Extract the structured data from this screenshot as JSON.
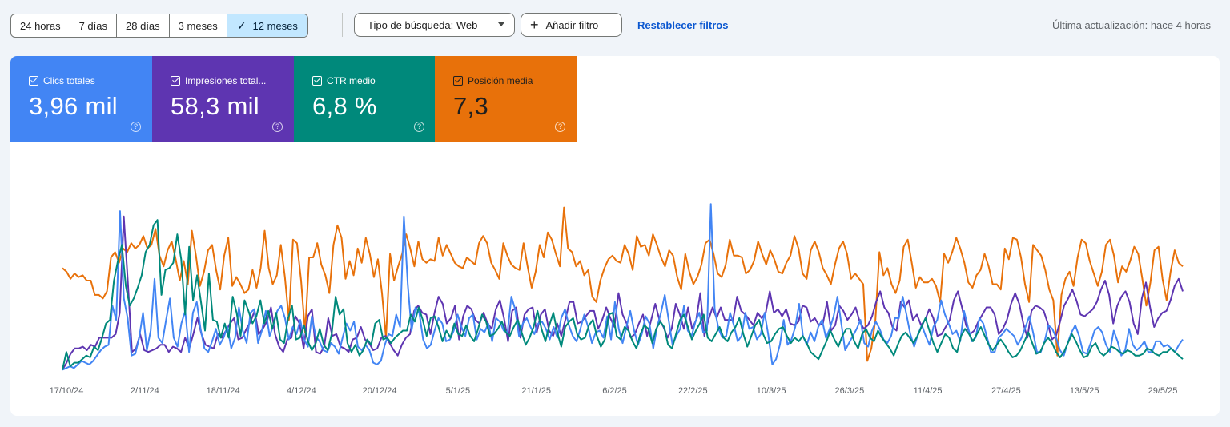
{
  "toolbar": {
    "ranges": [
      "24 horas",
      "7 días",
      "28 días",
      "3 meses",
      "12 meses"
    ],
    "active_range": "12 meses",
    "search_type": "Tipo de búsqueda: Web",
    "add_filter": "Añadir filtro",
    "reset_filters": "Restablecer filtros",
    "last_update": "Última actualización: hace 4 horas"
  },
  "metrics": {
    "clicks": {
      "label": "Clics totales",
      "value": "3,96 mil",
      "color": "#4285f4",
      "checked": true
    },
    "impressions": {
      "label": "Impresiones total...",
      "value": "58,3 mil",
      "color": "#5e35b1",
      "checked": true
    },
    "ctr": {
      "label": "CTR medio",
      "value": "6,8 %",
      "color": "#00897b",
      "checked": true
    },
    "position": {
      "label": "Posición media",
      "value": "7,3",
      "color": "#e8710a",
      "checked": true
    }
  },
  "chart_data": {
    "type": "line",
    "x_range": [
      "2024-10-17",
      "2025-05-30"
    ],
    "tick_labels": [
      "17/10/24",
      "2/11/24",
      "18/11/24",
      "4/12/24",
      "20/12/24",
      "5/1/25",
      "21/1/25",
      "6/2/25",
      "22/2/25",
      "10/3/25",
      "26/3/25",
      "11/4/25",
      "27/4/25",
      "13/5/25",
      "29/5/25"
    ],
    "axes_visible": false,
    "grid": false,
    "note": "Series values are relative levels (0 = bottom, 1 = top of plot) since no y-axis is shown",
    "series": [
      {
        "name": "Posición media",
        "color": "#e8710a",
        "values": [
          0.59,
          0.57,
          0.53,
          0.56,
          0.54,
          0.55,
          0.52,
          0.52,
          0.44,
          0.44,
          0.42,
          0.46,
          0.65,
          0.68,
          0.62,
          0.7,
          0.68,
          0.73,
          0.7,
          0.72,
          0.77,
          0.7,
          0.72,
          0.81,
          0.66,
          0.6,
          0.69,
          0.74,
          0.64,
          0.52,
          0.63,
          0.5,
          0.8,
          0.66,
          0.49,
          0.57,
          0.69,
          0.72,
          0.58,
          0.47,
          0.66,
          0.76,
          0.49,
          0.54,
          0.5,
          0.45,
          0.47,
          0.58,
          0.48,
          0.59,
          0.8,
          0.59,
          0.5,
          0.55,
          0.72,
          0.54,
          0.3,
          0.75,
          0.73,
          0.52,
          0.23,
          0.65,
          0.65,
          0.73,
          0.61,
          0.55,
          0.45,
          0.72,
          0.83,
          0.76,
          0.53,
          0.63,
          0.55,
          0.7,
          0.62,
          0.76,
          0.67,
          0.54,
          0.64,
          0.45,
          0.2,
          0.67,
          0.52,
          0.6,
          0.67,
          0.78,
          0.7,
          0.6,
          0.74,
          0.64,
          0.62,
          0.64,
          0.63,
          0.76,
          0.66,
          0.72,
          0.67,
          0.62,
          0.6,
          0.59,
          0.65,
          0.63,
          0.61,
          0.73,
          0.77,
          0.73,
          0.62,
          0.58,
          0.53,
          0.73,
          0.66,
          0.61,
          0.59,
          0.58,
          0.73,
          0.6,
          0.48,
          0.57,
          0.72,
          0.65,
          0.79,
          0.75,
          0.67,
          0.6,
          0.93,
          0.7,
          0.68,
          0.6,
          0.63,
          0.55,
          0.58,
          0.43,
          0.4,
          0.52,
          0.59,
          0.64,
          0.66,
          0.63,
          0.62,
          0.72,
          0.67,
          0.58,
          0.77,
          0.71,
          0.72,
          0.66,
          0.78,
          0.72,
          0.65,
          0.6,
          0.69,
          0.66,
          0.54,
          0.47,
          0.67,
          0.57,
          0.5,
          0.54,
          0.61,
          0.73,
          0.75,
          0.67,
          0.56,
          0.54,
          0.61,
          0.75,
          0.66,
          0.66,
          0.65,
          0.56,
          0.58,
          0.63,
          0.74,
          0.67,
          0.61,
          0.69,
          0.64,
          0.57,
          0.56,
          0.62,
          0.66,
          0.77,
          0.7,
          0.56,
          0.53,
          0.69,
          0.74,
          0.68,
          0.59,
          0.55,
          0.5,
          0.61,
          0.7,
          0.74,
          0.67,
          0.53,
          0.56,
          0.53,
          0.5,
          0.07,
          0.14,
          0.3,
          0.68,
          0.55,
          0.59,
          0.5,
          0.45,
          0.52,
          0.71,
          0.75,
          0.62,
          0.48,
          0.54,
          0.51,
          0.51,
          0.53,
          0.49,
          0.4,
          0.67,
          0.62,
          0.68,
          0.76,
          0.7,
          0.62,
          0.51,
          0.48,
          0.55,
          0.58,
          0.67,
          0.6,
          0.5,
          0.5,
          0.47,
          0.7,
          0.64,
          0.76,
          0.75,
          0.65,
          0.5,
          0.4,
          0.72,
          0.69,
          0.66,
          0.58,
          0.47,
          0.41,
          0.1,
          0.44,
          0.53,
          0.57,
          0.49,
          0.65,
          0.75,
          0.73,
          0.63,
          0.56,
          0.49,
          0.57,
          0.72,
          0.75,
          0.66,
          0.51,
          0.6,
          0.57,
          0.63,
          0.71,
          0.67,
          0.53,
          0.38,
          0.51,
          0.69,
          0.71,
          0.53,
          0.41,
          0.57,
          0.69,
          0.62,
          0.6
        ]
      },
      {
        "name": "Impresiones totales",
        "color": "#5e35b1",
        "values": [
          0.02,
          0.06,
          0.11,
          0.14,
          0.14,
          0.15,
          0.13,
          0.16,
          0.15,
          0.2,
          0.2,
          0.2,
          0.2,
          0.22,
          0.34,
          0.88,
          0.51,
          0.12,
          0.14,
          0.22,
          0.13,
          0.12,
          0.13,
          0.14,
          0.16,
          0.16,
          0.12,
          0.15,
          0.14,
          0.12,
          0.2,
          0.14,
          0.22,
          0.31,
          0.22,
          0.16,
          0.15,
          0.14,
          0.22,
          0.2,
          0.24,
          0.28,
          0.31,
          0.19,
          0.2,
          0.25,
          0.29,
          0.35,
          0.22,
          0.25,
          0.29,
          0.37,
          0.22,
          0.15,
          0.12,
          0.19,
          0.2,
          0.32,
          0.28,
          0.14,
          0.32,
          0.36,
          0.12,
          0.11,
          0.15,
          0.31,
          0.21,
          0.22,
          0.15,
          0.14,
          0.12,
          0.19,
          0.2,
          0.26,
          0.19,
          0.17,
          0.13,
          0.14,
          0.2,
          0.21,
          0.17,
          0.13,
          0.1,
          0.16,
          0.2,
          0.22,
          0.35,
          0.38,
          0.34,
          0.33,
          0.22,
          0.34,
          0.43,
          0.39,
          0.28,
          0.31,
          0.38,
          0.19,
          0.32,
          0.38,
          0.36,
          0.3,
          0.28,
          0.34,
          0.28,
          0.25,
          0.36,
          0.41,
          0.31,
          0.18,
          0.35,
          0.37,
          0.2,
          0.33,
          0.36,
          0.37,
          0.23,
          0.33,
          0.36,
          0.24,
          0.21,
          0.28,
          0.21,
          0.3,
          0.4,
          0.4,
          0.28,
          0.29,
          0.32,
          0.35,
          0.35,
          0.25,
          0.3,
          0.37,
          0.31,
          0.26,
          0.45,
          0.33,
          0.28,
          0.2,
          0.22,
          0.28,
          0.33,
          0.21,
          0.3,
          0.39,
          0.3,
          0.26,
          0.2,
          0.25,
          0.39,
          0.33,
          0.25,
          0.37,
          0.25,
          0.3,
          0.45,
          0.21,
          0.3,
          0.37,
          0.31,
          0.37,
          0.3,
          0.3,
          0.3,
          0.43,
          0.35,
          0.33,
          0.3,
          0.27,
          0.34,
          0.31,
          0.34,
          0.46,
          0.34,
          0.36,
          0.32,
          0.36,
          0.28,
          0.27,
          0.29,
          0.38,
          0.37,
          0.29,
          0.31,
          0.27,
          0.28,
          0.4,
          0.24,
          0.27,
          0.38,
          0.35,
          0.3,
          0.33,
          0.37,
          0.29,
          0.25,
          0.27,
          0.32,
          0.4,
          0.46,
          0.37,
          0.34,
          0.26,
          0.24,
          0.4,
          0.37,
          0.41,
          0.3,
          0.33,
          0.27,
          0.3,
          0.36,
          0.31,
          0.21,
          0.22,
          0.26,
          0.3,
          0.41,
          0.46,
          0.37,
          0.27,
          0.22,
          0.24,
          0.29,
          0.33,
          0.37,
          0.37,
          0.33,
          0.22,
          0.25,
          0.3,
          0.39,
          0.45,
          0.39,
          0.28,
          0.2,
          0.35,
          0.38,
          0.37,
          0.35,
          0.28,
          0.19,
          0.21,
          0.29,
          0.38,
          0.42,
          0.47,
          0.41,
          0.33,
          0.32,
          0.34,
          0.36,
          0.4,
          0.47,
          0.52,
          0.44,
          0.28,
          0.38,
          0.43,
          0.46,
          0.4,
          0.28,
          0.22,
          0.42,
          0.51,
          0.37,
          0.26,
          0.31,
          0.34,
          0.35,
          0.41,
          0.49,
          0.53,
          0.46
        ]
      },
      {
        "name": "Clics totales",
        "color": "#4285f4",
        "values": [
          0.02,
          0.03,
          0.04,
          0.03,
          0.05,
          0.07,
          0.06,
          0.05,
          0.07,
          0.1,
          0.13,
          0.15,
          0.16,
          0.38,
          0.3,
          0.91,
          0.42,
          0.31,
          0.1,
          0.11,
          0.2,
          0.34,
          0.13,
          0.24,
          0.53,
          0.2,
          0.17,
          0.3,
          0.42,
          0.2,
          0.15,
          0.28,
          0.35,
          0.12,
          0.34,
          0.4,
          0.25,
          0.14,
          0.12,
          0.18,
          0.25,
          0.16,
          0.2,
          0.26,
          0.14,
          0.2,
          0.37,
          0.24,
          0.17,
          0.34,
          0.36,
          0.17,
          0.24,
          0.35,
          0.21,
          0.27,
          0.35,
          0.38,
          0.31,
          0.19,
          0.26,
          0.22,
          0.3,
          0.19,
          0.15,
          0.32,
          0.21,
          0.18,
          0.13,
          0.12,
          0.17,
          0.15,
          0.11,
          0.2,
          0.28,
          0.24,
          0.29,
          0.15,
          0.13,
          0.16,
          0.13,
          0.06,
          0.05,
          0.07,
          0.16,
          0.22,
          0.21,
          0.33,
          0.26,
          0.88,
          0.5,
          0.24,
          0.37,
          0.34,
          0.19,
          0.14,
          0.16,
          0.24,
          0.31,
          0.28,
          0.18,
          0.19,
          0.24,
          0.33,
          0.26,
          0.21,
          0.31,
          0.33,
          0.19,
          0.25,
          0.23,
          0.28,
          0.18,
          0.31,
          0.29,
          0.24,
          0.23,
          0.43,
          0.36,
          0.21,
          0.28,
          0.31,
          0.26,
          0.22,
          0.28,
          0.29,
          0.25,
          0.19,
          0.26,
          0.2,
          0.31,
          0.36,
          0.27,
          0.21,
          0.18,
          0.25,
          0.33,
          0.26,
          0.17,
          0.23,
          0.24,
          0.2,
          0.32,
          0.19,
          0.4,
          0.25,
          0.17,
          0.26,
          0.35,
          0.24,
          0.16,
          0.22,
          0.32,
          0.28,
          0.14,
          0.26,
          0.34,
          0.44,
          0.3,
          0.16,
          0.21,
          0.25,
          0.38,
          0.24,
          0.21,
          0.29,
          0.34,
          0.23,
          0.24,
          0.95,
          0.36,
          0.25,
          0.2,
          0.21,
          0.34,
          0.27,
          0.18,
          0.21,
          0.34,
          0.25,
          0.26,
          0.19,
          0.22,
          0.34,
          0.21,
          0.05,
          0.08,
          0.16,
          0.3,
          0.16,
          0.19,
          0.26,
          0.39,
          0.21,
          0.16,
          0.23,
          0.18,
          0.26,
          0.3,
          0.2,
          0.25,
          0.32,
          0.43,
          0.28,
          0.13,
          0.17,
          0.21,
          0.25,
          0.3,
          0.17,
          0.15,
          0.24,
          0.29,
          0.25,
          0.19,
          0.17,
          0.21,
          0.31,
          0.31,
          0.43,
          0.33,
          0.22,
          0.15,
          0.22,
          0.27,
          0.21,
          0.16,
          0.26,
          0.3,
          0.41,
          0.33,
          0.28,
          0.22,
          0.24,
          0.18,
          0.35,
          0.26,
          0.18,
          0.2,
          0.31,
          0.28,
          0.2,
          0.12,
          0.12,
          0.2,
          0.22,
          0.25,
          0.23,
          0.21,
          0.16,
          0.2,
          0.26,
          0.32,
          0.23,
          0.12,
          0.12,
          0.18,
          0.27,
          0.25,
          0.2,
          0.13,
          0.1,
          0.17,
          0.23,
          0.27,
          0.21,
          0.12,
          0.11,
          0.17,
          0.24,
          0.26,
          0.23,
          0.16,
          0.12,
          0.24,
          0.18,
          0.1,
          0.13,
          0.25,
          0.16,
          0.13,
          0.15,
          0.18,
          0.12,
          0.12,
          0.18,
          0.18,
          0.15,
          0.16,
          0.14,
          0.12,
          0.16,
          0.19
        ]
      },
      {
        "name": "CTR medio",
        "color": "#00897b",
        "values": [
          0.02,
          0.12,
          0.04,
          0.06,
          0.06,
          0.08,
          0.1,
          0.09,
          0.15,
          0.13,
          0.2,
          0.28,
          0.3,
          0.52,
          0.63,
          0.72,
          0.49,
          0.38,
          0.42,
          0.48,
          0.55,
          0.68,
          0.72,
          0.83,
          0.86,
          0.44,
          0.58,
          0.59,
          0.62,
          0.78,
          0.64,
          0.33,
          0.71,
          0.41,
          0.55,
          0.4,
          0.24,
          0.56,
          0.3,
          0.29,
          0.2,
          0.28,
          0.2,
          0.43,
          0.34,
          0.21,
          0.41,
          0.35,
          0.28,
          0.32,
          0.41,
          0.28,
          0.35,
          0.25,
          0.34,
          0.19,
          0.17,
          0.31,
          0.38,
          0.19,
          0.2,
          0.27,
          0.18,
          0.13,
          0.17,
          0.25,
          0.16,
          0.13,
          0.22,
          0.43,
          0.33,
          0.36,
          0.17,
          0.12,
          0.16,
          0.1,
          0.13,
          0.19,
          0.16,
          0.28,
          0.3,
          0.19,
          0.2,
          0.17,
          0.2,
          0.22,
          0.24,
          0.24,
          0.33,
          0.29,
          0.37,
          0.3,
          0.21,
          0.31,
          0.32,
          0.26,
          0.18,
          0.24,
          0.2,
          0.28,
          0.22,
          0.21,
          0.27,
          0.21,
          0.18,
          0.25,
          0.33,
          0.29,
          0.21,
          0.22,
          0.25,
          0.29,
          0.23,
          0.21,
          0.26,
          0.3,
          0.23,
          0.16,
          0.2,
          0.26,
          0.35,
          0.25,
          0.18,
          0.27,
          0.34,
          0.23,
          0.15,
          0.26,
          0.29,
          0.31,
          0.22,
          0.19,
          0.2,
          0.27,
          0.3,
          0.21,
          0.15,
          0.19,
          0.33,
          0.34,
          0.21,
          0.19,
          0.26,
          0.24,
          0.18,
          0.14,
          0.22,
          0.27,
          0.25,
          0.17,
          0.25,
          0.29,
          0.26,
          0.16,
          0.14,
          0.22,
          0.3,
          0.33,
          0.26,
          0.19,
          0.24,
          0.28,
          0.33,
          0.2,
          0.18,
          0.22,
          0.26,
          0.2,
          0.18,
          0.23,
          0.26,
          0.31,
          0.22,
          0.15,
          0.21,
          0.27,
          0.3,
          0.22,
          0.17,
          0.18,
          0.22,
          0.25,
          0.26,
          0.21,
          0.17,
          0.2,
          0.18,
          0.21,
          0.17,
          0.12,
          0.1,
          0.08,
          0.13,
          0.18,
          0.24,
          0.19,
          0.15,
          0.21,
          0.25,
          0.25,
          0.18,
          0.14,
          0.22,
          0.25,
          0.2,
          0.18,
          0.24,
          0.2,
          0.17,
          0.14,
          0.1,
          0.16,
          0.21,
          0.23,
          0.2,
          0.17,
          0.21,
          0.26,
          0.31,
          0.24,
          0.17,
          0.12,
          0.17,
          0.22,
          0.2,
          0.14,
          0.12,
          0.21,
          0.25,
          0.22,
          0.18,
          0.22,
          0.26,
          0.21,
          0.16,
          0.13,
          0.16,
          0.19,
          0.16,
          0.12,
          0.09,
          0.1,
          0.13,
          0.18,
          0.23,
          0.17,
          0.11,
          0.12,
          0.17,
          0.2,
          0.17,
          0.12,
          0.09,
          0.12,
          0.17,
          0.22,
          0.18,
          0.13,
          0.09,
          0.1,
          0.15,
          0.17,
          0.12,
          0.1,
          0.12,
          0.15,
          0.14,
          0.12,
          0.11,
          0.13,
          0.12,
          0.1,
          0.1,
          0.11,
          0.14,
          0.13,
          0.11,
          0.1,
          0.12,
          0.12,
          0.14,
          0.12,
          0.1,
          0.08
        ]
      }
    ]
  }
}
